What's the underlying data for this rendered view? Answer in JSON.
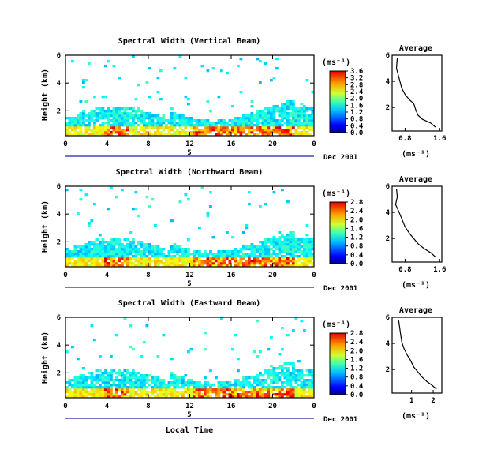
{
  "figure": {
    "xlabel": "Local Time",
    "date_label": "Dec 2001",
    "day_marker": "5",
    "colorbar_unit": "(ms⁻¹)",
    "avg_title": "Average",
    "avg_xlabel": "(ms⁻¹)"
  },
  "chart_data": [
    {
      "type": "heatmap",
      "title": "Spectral Width (Vertical Beam)",
      "ylabel": "Height (km)",
      "xticks": [
        "0",
        "4",
        "8",
        "12",
        "16",
        "20",
        "0"
      ],
      "yticks": [
        "2",
        "4",
        "6"
      ],
      "xlim": [
        0,
        24
      ],
      "ylim": [
        0.2,
        6
      ],
      "colorbar": {
        "ticks": [
          "0.0",
          "0.4",
          "0.8",
          "1.2",
          "1.6",
          "2.0",
          "2.4",
          "2.8",
          "3.2",
          "3.6"
        ],
        "range": [
          0,
          3.6
        ]
      },
      "average_profile": {
        "xticks": [
          "0.8",
          "1.6"
        ],
        "yticks": [
          "2",
          "4",
          "6"
        ],
        "xlim": [
          0.5,
          1.65
        ],
        "ylim": [
          0.2,
          6
        ],
        "points": [
          [
            0.62,
            5.8
          ],
          [
            0.6,
            5.0
          ],
          [
            0.65,
            4.4
          ],
          [
            0.68,
            4.0
          ],
          [
            0.72,
            3.5
          ],
          [
            0.8,
            3.0
          ],
          [
            0.9,
            2.6
          ],
          [
            1.0,
            2.3
          ],
          [
            1.05,
            1.8
          ],
          [
            1.1,
            1.4
          ],
          [
            1.2,
            1.1
          ],
          [
            1.4,
            0.8
          ],
          [
            1.5,
            0.5
          ]
        ]
      }
    },
    {
      "type": "heatmap",
      "title": "Spectral Width (Northward Beam)",
      "ylabel": "Height (km)",
      "xticks": [
        "0",
        "4",
        "8",
        "12",
        "16",
        "20",
        "0"
      ],
      "yticks": [
        "2",
        "4",
        "6"
      ],
      "xlim": [
        0,
        24
      ],
      "ylim": [
        0.2,
        6
      ],
      "colorbar": {
        "ticks": [
          "0.0",
          "0.4",
          "0.8",
          "1.2",
          "1.6",
          "2.0",
          "2.4",
          "2.8"
        ],
        "range": [
          0,
          2.8
        ]
      },
      "average_profile": {
        "xticks": [
          "0.8",
          "1.6"
        ],
        "yticks": [
          "2",
          "4",
          "6"
        ],
        "xlim": [
          0.5,
          1.65
        ],
        "ylim": [
          0.2,
          6
        ],
        "points": [
          [
            0.6,
            5.8
          ],
          [
            0.62,
            5.2
          ],
          [
            0.58,
            4.6
          ],
          [
            0.65,
            4.1
          ],
          [
            0.7,
            3.7
          ],
          [
            0.75,
            3.3
          ],
          [
            0.8,
            2.9
          ],
          [
            0.9,
            2.4
          ],
          [
            1.0,
            2.0
          ],
          [
            1.1,
            1.6
          ],
          [
            1.25,
            1.2
          ],
          [
            1.4,
            0.9
          ],
          [
            1.5,
            0.6
          ]
        ]
      }
    },
    {
      "type": "heatmap",
      "title": "Spectral Width (Eastward Beam)",
      "ylabel": "Height (km)",
      "xticks": [
        "0",
        "4",
        "8",
        "12",
        "16",
        "20",
        "0"
      ],
      "yticks": [
        "2",
        "4",
        "6"
      ],
      "xlim": [
        0,
        24
      ],
      "ylim": [
        0.2,
        6
      ],
      "colorbar": {
        "ticks": [
          "0.0",
          "0.4",
          "0.8",
          "1.2",
          "1.6",
          "2.0",
          "2.4",
          "2.8"
        ],
        "range": [
          0,
          2.8
        ]
      },
      "average_profile": {
        "xticks": [
          "1",
          "2"
        ],
        "yticks": [
          "2",
          "4",
          "6"
        ],
        "xlim": [
          0.1,
          2.4
        ],
        "ylim": [
          0.2,
          6
        ],
        "points": [
          [
            0.4,
            5.8
          ],
          [
            0.45,
            5.2
          ],
          [
            0.5,
            4.6
          ],
          [
            0.55,
            4.1
          ],
          [
            0.65,
            3.6
          ],
          [
            0.8,
            3.1
          ],
          [
            0.95,
            2.7
          ],
          [
            1.1,
            2.2
          ],
          [
            1.3,
            1.8
          ],
          [
            1.5,
            1.4
          ],
          [
            1.7,
            1.1
          ],
          [
            1.95,
            0.8
          ],
          [
            2.15,
            0.5
          ]
        ]
      }
    }
  ]
}
